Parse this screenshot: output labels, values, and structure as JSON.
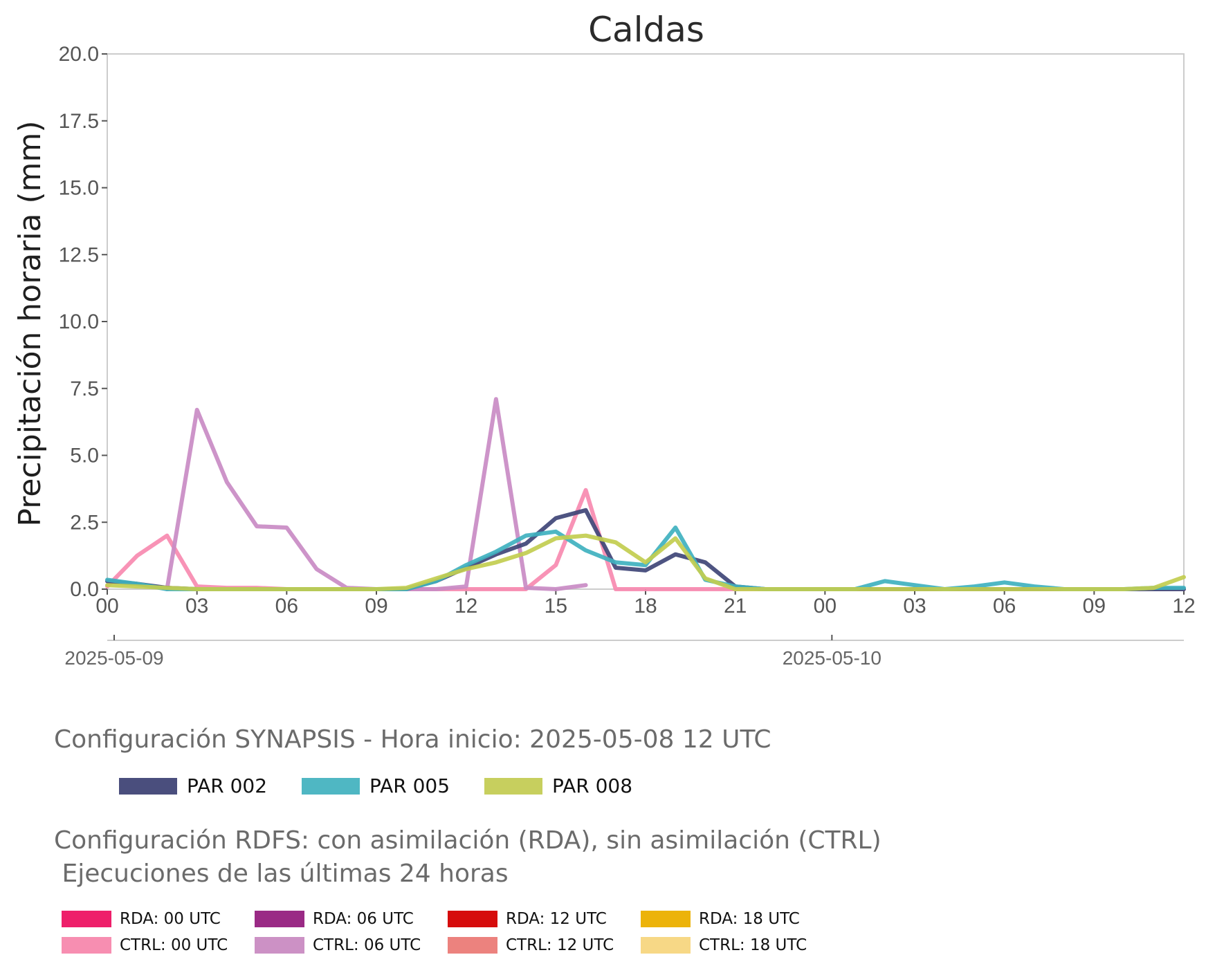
{
  "chart_data": {
    "type": "line",
    "title": "Caldas",
    "ylabel": "Precipitación horaria (mm)",
    "xlabel": "",
    "ylim": [
      0,
      20
    ],
    "yticks": [
      "0.0",
      "2.5",
      "5.0",
      "7.5",
      "10.0",
      "12.5",
      "15.0",
      "17.5",
      "20.0"
    ],
    "x_hours_since_start_range": [
      0,
      36
    ],
    "xticks": [
      "00",
      "03",
      "06",
      "09",
      "12",
      "15",
      "18",
      "21",
      "00",
      "03",
      "06",
      "09",
      "12"
    ],
    "date_ticks": [
      {
        "label": "2025-05-09",
        "hour": 0
      },
      {
        "label": "2025-05-10",
        "hour": 24
      }
    ],
    "grid": false,
    "series": [
      {
        "name": "PAR 002",
        "color": "#3f4577",
        "x": [
          0,
          1,
          2,
          3,
          4,
          5,
          6,
          7,
          8,
          9,
          10,
          11,
          12,
          13,
          14,
          15,
          16,
          17,
          18,
          19,
          20,
          21,
          22,
          23,
          24,
          25,
          26,
          27,
          28,
          29,
          30,
          31,
          32,
          33,
          34,
          35,
          36
        ],
        "y": [
          0.3,
          0.2,
          0.05,
          0,
          0,
          0,
          0,
          0,
          0,
          0,
          0,
          0.3,
          0.8,
          1.3,
          1.7,
          2.65,
          2.95,
          0.8,
          0.7,
          1.3,
          1.0,
          0.1,
          0,
          0,
          0,
          0,
          0,
          0,
          0,
          0,
          0,
          0,
          0,
          0,
          0,
          0,
          0
        ]
      },
      {
        "name": "PAR 005",
        "color": "#3fb1bf",
        "x": [
          0,
          1,
          2,
          3,
          4,
          5,
          6,
          7,
          8,
          9,
          10,
          11,
          12,
          13,
          14,
          15,
          16,
          17,
          18,
          19,
          20,
          21,
          22,
          23,
          24,
          25,
          26,
          27,
          28,
          29,
          30,
          31,
          32,
          33,
          34,
          35,
          36
        ],
        "y": [
          0.35,
          0.2,
          0,
          0,
          0,
          0,
          0,
          0,
          0,
          0,
          0,
          0.3,
          0.9,
          1.4,
          2.0,
          2.15,
          1.45,
          1.0,
          0.9,
          2.3,
          0.35,
          0.1,
          0,
          0,
          0,
          0,
          0.3,
          0.15,
          0,
          0.1,
          0.25,
          0.1,
          0,
          0,
          0,
          0.05,
          0.05
        ]
      },
      {
        "name": "PAR 008",
        "color": "#c2cd4f",
        "x": [
          0,
          1,
          2,
          3,
          4,
          5,
          6,
          7,
          8,
          9,
          10,
          11,
          12,
          13,
          14,
          15,
          16,
          17,
          18,
          19,
          20,
          21,
          22,
          23,
          24,
          25,
          26,
          27,
          28,
          29,
          30,
          31,
          32,
          33,
          34,
          35,
          36
        ],
        "y": [
          0.15,
          0.1,
          0.05,
          0,
          0,
          0,
          0,
          0,
          0,
          0,
          0.05,
          0.4,
          0.75,
          1.0,
          1.35,
          1.9,
          2.0,
          1.75,
          1.0,
          1.9,
          0.4,
          0,
          0,
          0,
          0,
          0,
          0,
          0,
          0,
          0,
          0,
          0,
          0,
          0,
          0,
          0.05,
          0.45
        ]
      },
      {
        "name": "CTRL: 00 UTC",
        "color": "#f78ab0",
        "x": [
          0,
          1,
          2,
          3,
          4,
          5,
          6,
          7,
          8,
          9,
          10,
          11,
          12,
          13,
          14,
          15,
          16,
          17,
          18,
          19,
          20,
          21,
          22,
          23,
          24,
          25,
          26,
          27,
          28,
          29,
          30,
          31,
          32,
          33,
          34,
          35,
          36
        ],
        "y": [
          0.1,
          1.25,
          2.0,
          0.1,
          0.05,
          0.05,
          0,
          0,
          0,
          0,
          0,
          0,
          0,
          0,
          0,
          0.9,
          3.7,
          0,
          0,
          0,
          0,
          0,
          0,
          0,
          0,
          0,
          0,
          0,
          0,
          0,
          0,
          0,
          0,
          0,
          0,
          0,
          0
        ]
      },
      {
        "name": "CTRL: 06 UTC",
        "color": "#c98bc4",
        "x": [
          2,
          3,
          4,
          5,
          6,
          7,
          8,
          9,
          10,
          11,
          12,
          13,
          14,
          15,
          16
        ],
        "y": [
          0,
          6.7,
          4.0,
          2.35,
          2.3,
          0.75,
          0.05,
          0,
          0,
          0,
          0.1,
          7.1,
          0.05,
          0,
          0.15
        ]
      }
    ]
  },
  "legend_synapsis": {
    "heading": "Configuración SYNAPSIS - Hora inicio: 2025-05-08 12 UTC",
    "items": [
      {
        "label": "PAR 002",
        "color": "#4a4e7d"
      },
      {
        "label": "PAR 005",
        "color": "#4fb7c3"
      },
      {
        "label": "PAR 008",
        "color": "#c7cf5e"
      }
    ]
  },
  "legend_rdfs": {
    "heading": "Configuración RDFS: con asimilación (RDA), sin asimilación (CTRL)\n Ejecuciones de las últimas 24 horas",
    "items": [
      {
        "label": "RDA: 00 UTC",
        "color": "#ee1f6a"
      },
      {
        "label": "RDA: 06 UTC",
        "color": "#9a2a85"
      },
      {
        "label": "RDA: 12 UTC",
        "color": "#d60c0c"
      },
      {
        "label": "RDA: 18 UTC",
        "color": "#ecb30a"
      },
      {
        "label": "CTRL: 00 UTC",
        "color": "#f78eb1"
      },
      {
        "label": "CTRL: 06 UTC",
        "color": "#cc91c5"
      },
      {
        "label": "CTRL: 12 UTC",
        "color": "#ec827e"
      },
      {
        "label": "CTRL: 18 UTC",
        "color": "#f7d886"
      }
    ]
  }
}
